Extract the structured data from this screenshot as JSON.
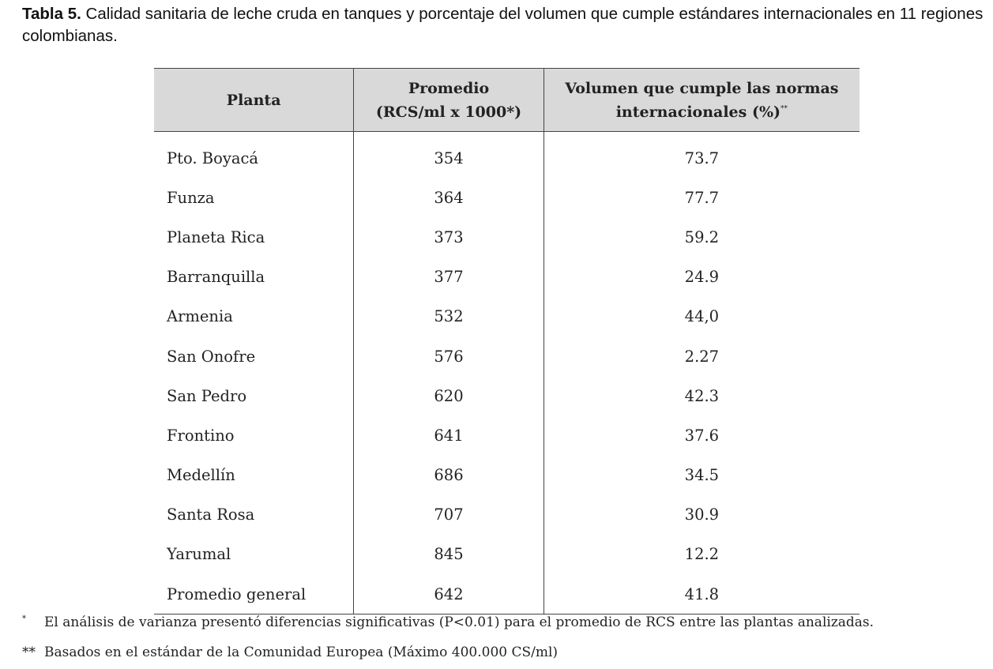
{
  "caption": {
    "label": "Tabla 5.",
    "text": "Calidad sanitaria de leche cruda en tanques y porcentaje del volumen que cumple estándares internacionales en 11 regiones colombianas."
  },
  "table": {
    "headers": {
      "col1": "Planta",
      "col2_line1": "Promedio",
      "col2_line2": "(RCS/ml x 1000*)",
      "col3_line1": "Volumen que cumple las normas",
      "col3_line2": "internacionales (%)",
      "col3_mark": "**"
    },
    "rows": [
      {
        "planta": "Pto. Boyacá",
        "promedio": "354",
        "volumen": "73.7"
      },
      {
        "planta": "Funza",
        "promedio": "364",
        "volumen": "77.7"
      },
      {
        "planta": "Planeta Rica",
        "promedio": "373",
        "volumen": "59.2"
      },
      {
        "planta": "Barranquilla",
        "promedio": "377",
        "volumen": "24.9"
      },
      {
        "planta": "Armenia",
        "promedio": "532",
        "volumen": "44,0"
      },
      {
        "planta": "San Onofre",
        "promedio": "576",
        "volumen": "2.27"
      },
      {
        "planta": "San Pedro",
        "promedio": "620",
        "volumen": "42.3"
      },
      {
        "planta": "Frontino",
        "promedio": "641",
        "volumen": "37.6"
      },
      {
        "planta": "Medellín",
        "promedio": "686",
        "volumen": "34.5"
      },
      {
        "planta": "Santa Rosa",
        "promedio": "707",
        "volumen": "30.9"
      },
      {
        "planta": "Yarumal",
        "promedio": "845",
        "volumen": "12.2"
      },
      {
        "planta": "Promedio general",
        "promedio": "642",
        "volumen": "41.8"
      }
    ]
  },
  "footnotes": [
    {
      "mark": "*",
      "text": "El análisis de varianza presentó diferencias significativas (P<0.01) para el promedio de RCS entre las plantas analizadas."
    },
    {
      "mark": "**",
      "text": "Basados en el estándar de la Comunidad Europea (Máximo 400.000 CS/ml)"
    }
  ]
}
